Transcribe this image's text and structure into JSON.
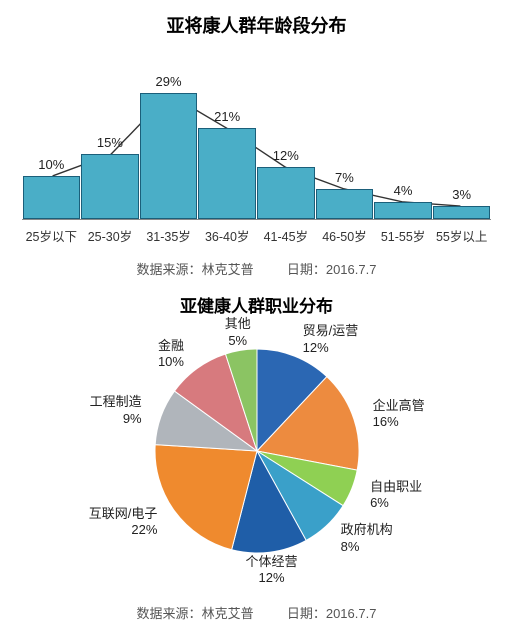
{
  "bar_chart": {
    "title": "亚将康人群年龄段分布",
    "type": "bar",
    "categories": [
      "25岁以下",
      "25-30岁",
      "31-35岁",
      "36-40岁",
      "41-45岁",
      "46-50岁",
      "51-55岁",
      "55岁以上"
    ],
    "values_pct": [
      10,
      15,
      29,
      21,
      12,
      7,
      4,
      3
    ],
    "value_labels": [
      "10%",
      "15%",
      "29%",
      "21%",
      "12%",
      "7%",
      "4%",
      "3%"
    ],
    "y_max": 30,
    "bar_color": "#4aaec7",
    "bar_border": "#1b5f7a",
    "line_color": "#333333",
    "label_fontsize": 13,
    "source_prefix": "数据来源：",
    "source": "林克艾普",
    "date_prefix": "日期：",
    "date": "2016.7.7"
  },
  "pie_chart": {
    "title": "亚健康人群职业分布",
    "type": "pie",
    "radius": 102,
    "start_angle_deg": -90,
    "slices": [
      {
        "label": "贸易/运营",
        "pct": 12,
        "pct_label": "12%",
        "color": "#2b67b3"
      },
      {
        "label": "企业高管",
        "pct": 16,
        "pct_label": "16%",
        "color": "#ed8b3f"
      },
      {
        "label": "自由职业",
        "pct": 6,
        "pct_label": "6%",
        "color": "#8fd053"
      },
      {
        "label": "政府机构",
        "pct": 8,
        "pct_label": "8%",
        "color": "#3aa0c9"
      },
      {
        "label": "个体经营",
        "pct": 12,
        "pct_label": "12%",
        "color": "#1f5ea8"
      },
      {
        "label": "互联网/电子",
        "pct": 22,
        "pct_label": "22%",
        "color": "#ef8a2e"
      },
      {
        "label": "工程制造",
        "pct": 9,
        "pct_label": "9%",
        "color": "#b0b5bb"
      },
      {
        "label": "金融",
        "pct": 10,
        "pct_label": "10%",
        "color": "#d77a7e"
      },
      {
        "label": "其他",
        "pct": 5,
        "pct_label": "5%",
        "color": "#8bc463"
      }
    ],
    "label_fontsize": 13,
    "line_color": "#777",
    "source_prefix": "数据来源：",
    "source": "林克艾普",
    "date_prefix": "日期：",
    "date": "2016.7.7"
  }
}
